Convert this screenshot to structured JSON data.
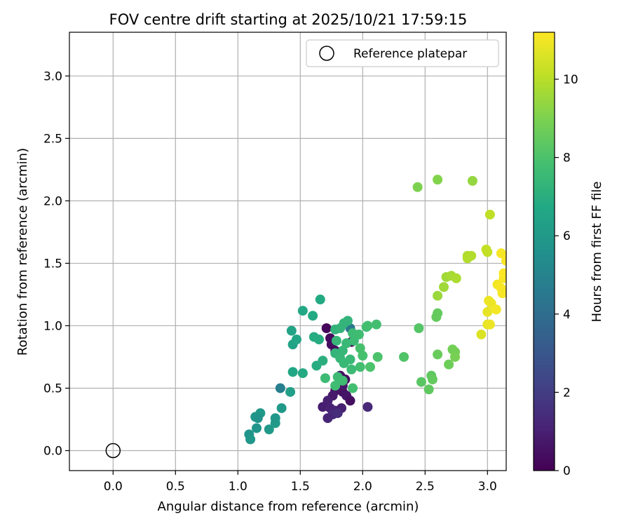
{
  "chart_data": {
    "type": "scatter",
    "title": "FOV centre drift starting at 2025/10/21 17:59:15",
    "xlabel": "Angular distance from reference (arcmin)",
    "ylabel": "Rotation from reference (arcmin)",
    "xlim": [
      -0.35,
      3.15
    ],
    "ylim": [
      -0.16,
      3.35
    ],
    "xticks": [
      0.0,
      0.5,
      1.0,
      1.5,
      2.0,
      2.5,
      3.0
    ],
    "xtick_labels": [
      "0.0",
      "0.5",
      "1.0",
      "1.5",
      "2.0",
      "2.5",
      "3.0"
    ],
    "yticks": [
      0.0,
      0.5,
      1.0,
      1.5,
      2.0,
      2.5,
      3.0
    ],
    "ytick_labels": [
      "0.0",
      "0.5",
      "1.0",
      "1.5",
      "2.0",
      "2.5",
      "3.0"
    ],
    "grid": true,
    "legend": {
      "position": "top-right",
      "label": "Reference platepar",
      "marker": "open-circle"
    },
    "reference_point": {
      "x": 0.0,
      "y": 0.0
    },
    "colorbar": {
      "label": "Hours from first FF file",
      "min": 0,
      "max": 11.2,
      "ticks": [
        0,
        2,
        4,
        6,
        8,
        10
      ],
      "tick_labels": [
        "0",
        "2",
        "4",
        "6",
        "8",
        "10"
      ],
      "colormap": "viridis"
    },
    "points": [
      {
        "x": 1.71,
        "y": 0.98,
        "h": 0.2
      },
      {
        "x": 1.74,
        "y": 0.9,
        "h": 0.3
      },
      {
        "x": 1.75,
        "y": 0.85,
        "h": 0.4
      },
      {
        "x": 1.78,
        "y": 0.8,
        "h": 0.3
      },
      {
        "x": 1.82,
        "y": 0.6,
        "h": 0.5
      },
      {
        "x": 1.86,
        "y": 0.57,
        "h": 0.4
      },
      {
        "x": 1.84,
        "y": 0.47,
        "h": 0.5
      },
      {
        "x": 1.87,
        "y": 0.44,
        "h": 0.6
      },
      {
        "x": 1.9,
        "y": 0.4,
        "h": 0.4
      },
      {
        "x": 1.78,
        "y": 0.48,
        "h": 0.6
      },
      {
        "x": 1.76,
        "y": 0.44,
        "h": 0.8
      },
      {
        "x": 1.72,
        "y": 0.4,
        "h": 1.0
      },
      {
        "x": 1.68,
        "y": 0.35,
        "h": 0.9
      },
      {
        "x": 1.74,
        "y": 0.34,
        "h": 1.1
      },
      {
        "x": 1.78,
        "y": 0.32,
        "h": 1.2
      },
      {
        "x": 1.83,
        "y": 0.34,
        "h": 1.0
      },
      {
        "x": 1.76,
        "y": 0.29,
        "h": 1.3
      },
      {
        "x": 1.72,
        "y": 0.26,
        "h": 1.2
      },
      {
        "x": 1.8,
        "y": 0.3,
        "h": 1.4
      },
      {
        "x": 2.04,
        "y": 0.35,
        "h": 1.3
      },
      {
        "x": 1.91,
        "y": 0.87,
        "h": 0.3
      },
      {
        "x": 1.84,
        "y": 0.52,
        "h": 0.7
      },
      {
        "x": 1.34,
        "y": 0.5,
        "h": 4.8
      },
      {
        "x": 1.9,
        "y": 0.98,
        "h": 4.5
      },
      {
        "x": 1.09,
        "y": 0.13,
        "h": 5.8
      },
      {
        "x": 1.1,
        "y": 0.09,
        "h": 5.9
      },
      {
        "x": 1.15,
        "y": 0.18,
        "h": 5.8
      },
      {
        "x": 1.14,
        "y": 0.27,
        "h": 5.9
      },
      {
        "x": 1.18,
        "y": 0.3,
        "h": 6.0
      },
      {
        "x": 1.16,
        "y": 0.26,
        "h": 5.7
      },
      {
        "x": 1.25,
        "y": 0.17,
        "h": 6.0
      },
      {
        "x": 1.3,
        "y": 0.22,
        "h": 6.1
      },
      {
        "x": 1.3,
        "y": 0.26,
        "h": 5.9
      },
      {
        "x": 1.35,
        "y": 0.34,
        "h": 6.0
      },
      {
        "x": 1.42,
        "y": 0.47,
        "h": 6.3
      },
      {
        "x": 1.43,
        "y": 0.96,
        "h": 6.5
      },
      {
        "x": 1.44,
        "y": 0.85,
        "h": 6.5
      },
      {
        "x": 1.47,
        "y": 0.89,
        "h": 6.6
      },
      {
        "x": 1.44,
        "y": 0.63,
        "h": 6.6
      },
      {
        "x": 1.52,
        "y": 1.12,
        "h": 6.7
      },
      {
        "x": 1.6,
        "y": 1.08,
        "h": 6.8
      },
      {
        "x": 1.66,
        "y": 1.21,
        "h": 6.8
      },
      {
        "x": 1.61,
        "y": 0.91,
        "h": 6.9
      },
      {
        "x": 1.65,
        "y": 0.89,
        "h": 6.9
      },
      {
        "x": 1.52,
        "y": 0.62,
        "h": 6.8
      },
      {
        "x": 1.63,
        "y": 0.68,
        "h": 6.9
      },
      {
        "x": 1.68,
        "y": 0.72,
        "h": 7.0
      },
      {
        "x": 1.78,
        "y": 0.97,
        "h": 7.2
      },
      {
        "x": 1.82,
        "y": 0.98,
        "h": 7.3
      },
      {
        "x": 1.85,
        "y": 1.02,
        "h": 7.3
      },
      {
        "x": 1.88,
        "y": 1.04,
        "h": 7.3
      },
      {
        "x": 1.79,
        "y": 0.88,
        "h": 7.4
      },
      {
        "x": 1.84,
        "y": 0.8,
        "h": 7.4
      },
      {
        "x": 1.87,
        "y": 0.86,
        "h": 7.5
      },
      {
        "x": 1.93,
        "y": 0.88,
        "h": 7.6
      },
      {
        "x": 1.92,
        "y": 0.94,
        "h": 7.6
      },
      {
        "x": 1.97,
        "y": 0.93,
        "h": 7.7
      },
      {
        "x": 2.03,
        "y": 0.99,
        "h": 7.7
      },
      {
        "x": 2.04,
        "y": 1.0,
        "h": 7.8
      },
      {
        "x": 2.11,
        "y": 1.01,
        "h": 7.8
      },
      {
        "x": 1.78,
        "y": 0.78,
        "h": 7.3
      },
      {
        "x": 1.82,
        "y": 0.74,
        "h": 7.4
      },
      {
        "x": 1.9,
        "y": 0.73,
        "h": 7.5
      },
      {
        "x": 1.85,
        "y": 0.7,
        "h": 7.5
      },
      {
        "x": 1.91,
        "y": 0.65,
        "h": 7.6
      },
      {
        "x": 1.8,
        "y": 0.59,
        "h": 7.6
      },
      {
        "x": 1.84,
        "y": 0.56,
        "h": 7.7
      },
      {
        "x": 1.78,
        "y": 0.52,
        "h": 7.7
      },
      {
        "x": 1.7,
        "y": 0.58,
        "h": 7.6
      },
      {
        "x": 1.92,
        "y": 0.5,
        "h": 7.8
      },
      {
        "x": 1.98,
        "y": 0.67,
        "h": 7.8
      },
      {
        "x": 1.98,
        "y": 0.82,
        "h": 7.9
      },
      {
        "x": 2.0,
        "y": 0.76,
        "h": 7.9
      },
      {
        "x": 2.06,
        "y": 0.67,
        "h": 8.0
      },
      {
        "x": 2.12,
        "y": 0.75,
        "h": 8.0
      },
      {
        "x": 2.33,
        "y": 0.75,
        "h": 8.1
      },
      {
        "x": 2.45,
        "y": 0.98,
        "h": 8.2
      },
      {
        "x": 2.47,
        "y": 0.55,
        "h": 8.3
      },
      {
        "x": 2.53,
        "y": 0.49,
        "h": 8.4
      },
      {
        "x": 2.55,
        "y": 0.6,
        "h": 8.4
      },
      {
        "x": 2.56,
        "y": 0.57,
        "h": 8.5
      },
      {
        "x": 2.59,
        "y": 1.07,
        "h": 8.5
      },
      {
        "x": 2.6,
        "y": 1.1,
        "h": 8.5
      },
      {
        "x": 2.6,
        "y": 0.77,
        "h": 8.6
      },
      {
        "x": 2.69,
        "y": 0.69,
        "h": 8.7
      },
      {
        "x": 2.72,
        "y": 0.81,
        "h": 8.8
      },
      {
        "x": 2.74,
        "y": 0.79,
        "h": 8.8
      },
      {
        "x": 2.74,
        "y": 0.75,
        "h": 8.9
      },
      {
        "x": 2.44,
        "y": 2.11,
        "h": 9.0
      },
      {
        "x": 2.6,
        "y": 2.17,
        "h": 9.1
      },
      {
        "x": 2.88,
        "y": 2.16,
        "h": 9.4
      },
      {
        "x": 2.6,
        "y": 1.24,
        "h": 9.5
      },
      {
        "x": 2.65,
        "y": 1.31,
        "h": 9.6
      },
      {
        "x": 2.67,
        "y": 1.39,
        "h": 9.6
      },
      {
        "x": 2.71,
        "y": 1.4,
        "h": 9.7
      },
      {
        "x": 2.75,
        "y": 1.38,
        "h": 9.8
      },
      {
        "x": 2.84,
        "y": 1.56,
        "h": 9.8
      },
      {
        "x": 2.87,
        "y": 1.56,
        "h": 9.9
      },
      {
        "x": 2.84,
        "y": 1.54,
        "h": 9.9
      },
      {
        "x": 2.99,
        "y": 1.61,
        "h": 10.2
      },
      {
        "x": 3.0,
        "y": 1.59,
        "h": 10.2
      },
      {
        "x": 3.02,
        "y": 1.89,
        "h": 10.1
      },
      {
        "x": 2.95,
        "y": 0.93,
        "h": 10.6
      },
      {
        "x": 3.0,
        "y": 1.01,
        "h": 10.8
      },
      {
        "x": 3.02,
        "y": 1.01,
        "h": 10.9
      },
      {
        "x": 3.0,
        "y": 1.11,
        "h": 10.8
      },
      {
        "x": 3.01,
        "y": 1.2,
        "h": 10.9
      },
      {
        "x": 3.03,
        "y": 1.18,
        "h": 10.9
      },
      {
        "x": 3.07,
        "y": 1.13,
        "h": 11.0
      },
      {
        "x": 3.08,
        "y": 1.33,
        "h": 11.0
      },
      {
        "x": 3.11,
        "y": 1.3,
        "h": 11.1
      },
      {
        "x": 3.12,
        "y": 1.26,
        "h": 11.1
      },
      {
        "x": 3.13,
        "y": 1.38,
        "h": 11.1
      },
      {
        "x": 3.13,
        "y": 1.42,
        "h": 11.2
      },
      {
        "x": 3.11,
        "y": 1.58,
        "h": 11.1
      },
      {
        "x": 3.15,
        "y": 1.52,
        "h": 11.2
      }
    ]
  }
}
